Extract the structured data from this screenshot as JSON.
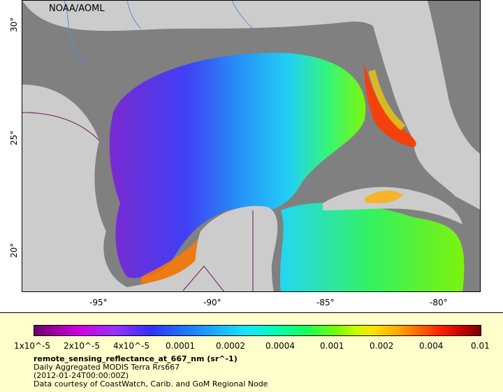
{
  "map": {
    "credit": "NOAA/AOML",
    "x_ticks": [
      "-95°",
      "-90°",
      "-85°",
      "-80°"
    ],
    "y_ticks": [
      "30°",
      "25°",
      "20°"
    ],
    "colors": {
      "land": "#cccccc",
      "water_no_data": "#808080",
      "borders": "#6a1a5a",
      "rivers": "#5a8fd8"
    }
  },
  "legend": {
    "scale": "log",
    "colorbar_labels": [
      "1x10^-5",
      "2x10^-5",
      "4x10^-5",
      "0.0001",
      "0.0002",
      "0.0004",
      "0.001",
      "0.002",
      "0.004",
      "0.01"
    ],
    "variable": "remote_sensing_reflectance_at_667_nm (sr^-1)",
    "dataset": "Daily Aggregated MODIS Terra Rrs667",
    "time": "(2012-01-24T00:00:00Z)",
    "courtesy": "Data courtesy of CoastWatch, Carib. and GoM Regional Node"
  }
}
